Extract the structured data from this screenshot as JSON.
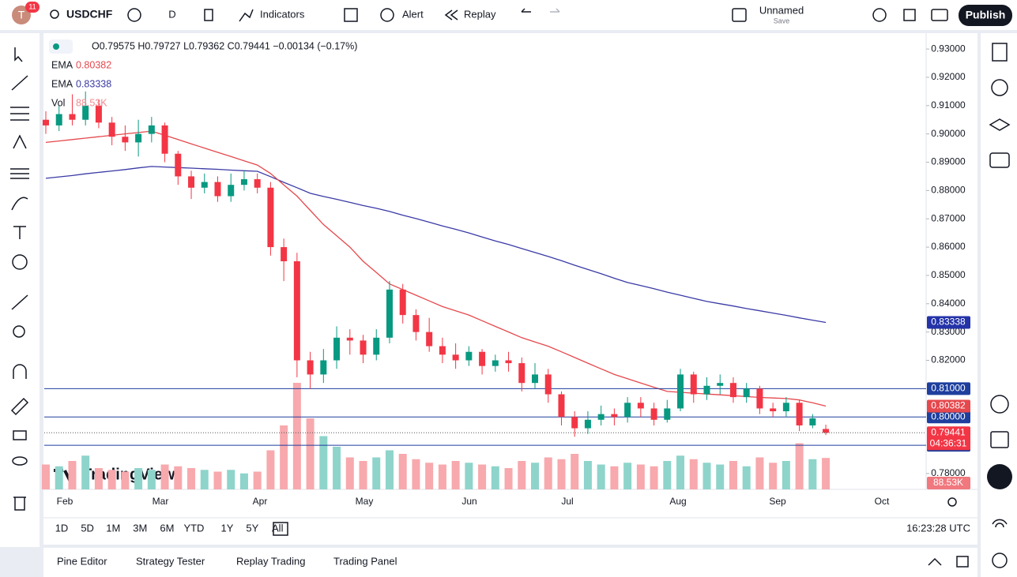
{
  "toolbar": {
    "avatar": "T",
    "notifications": "11",
    "symbol": "USDCHF",
    "interval": "D",
    "indicators": "Indicators",
    "alert": "Alert",
    "replay": "Replay",
    "layout_name": "Unnamed",
    "save": "Save",
    "publish": "Publish"
  },
  "chart_data": {
    "type": "candlestick",
    "ohlc_legend": "O0.79575 H0.79727 L0.79362 C0.79441 −0.00134 (−0.17%)",
    "indicators": [
      {
        "name": "EMA",
        "value_label": "0.80382",
        "color": "#e5484d"
      },
      {
        "name": "EMA",
        "value_label": "0.83338",
        "color": "#3a3aa6"
      },
      {
        "name": "Vol",
        "value_label": "88.53K",
        "color": "#f08a8f"
      }
    ],
    "months": [
      "Feb",
      "Mar",
      "Apr",
      "May",
      "Jun",
      "Jul",
      "Aug",
      "Sep",
      "Oct"
    ],
    "up_color": "#089981",
    "down_color": "#f23645",
    "volume_up_color": "#8ed4cb",
    "volume_down_color": "#f7a9ad",
    "open": [
      0.905,
      0.903,
      0.907,
      0.905,
      0.91,
      0.904,
      0.899,
      0.897,
      0.9,
      0.903,
      0.893,
      0.885,
      0.881,
      0.883,
      0.878,
      0.882,
      0.884,
      0.881,
      0.86,
      0.855,
      0.82,
      0.815,
      0.82,
      0.828,
      0.827,
      0.822,
      0.828,
      0.845,
      0.836,
      0.83,
      0.825,
      0.822,
      0.82,
      0.823,
      0.818,
      0.82,
      0.819,
      0.812,
      0.815,
      0.808,
      0.8,
      0.796,
      0.799,
      0.801,
      0.8,
      0.805,
      0.803,
      0.799,
      0.803,
      0.815,
      0.808,
      0.811,
      0.812,
      0.807,
      0.81,
      0.803,
      0.802,
      0.805,
      0.797,
      0.79575
    ],
    "high": [
      0.908,
      0.91,
      0.914,
      0.915,
      0.912,
      0.906,
      0.903,
      0.905,
      0.906,
      0.904,
      0.894,
      0.887,
      0.886,
      0.885,
      0.886,
      0.887,
      0.886,
      0.883,
      0.863,
      0.858,
      0.823,
      0.824,
      0.832,
      0.831,
      0.829,
      0.831,
      0.848,
      0.847,
      0.838,
      0.835,
      0.828,
      0.826,
      0.825,
      0.824,
      0.822,
      0.823,
      0.821,
      0.819,
      0.817,
      0.809,
      0.802,
      0.802,
      0.804,
      0.803,
      0.807,
      0.807,
      0.805,
      0.806,
      0.817,
      0.816,
      0.814,
      0.815,
      0.814,
      0.812,
      0.811,
      0.805,
      0.807,
      0.806,
      0.801,
      0.79727
    ],
    "low": [
      0.9,
      0.901,
      0.903,
      0.903,
      0.902,
      0.896,
      0.894,
      0.892,
      0.897,
      0.89,
      0.882,
      0.877,
      0.879,
      0.876,
      0.876,
      0.88,
      0.879,
      0.857,
      0.848,
      0.814,
      0.81,
      0.812,
      0.817,
      0.822,
      0.819,
      0.82,
      0.826,
      0.833,
      0.827,
      0.823,
      0.819,
      0.817,
      0.818,
      0.815,
      0.816,
      0.816,
      0.809,
      0.81,
      0.805,
      0.797,
      0.793,
      0.794,
      0.797,
      0.797,
      0.798,
      0.8,
      0.797,
      0.798,
      0.802,
      0.805,
      0.806,
      0.808,
      0.805,
      0.805,
      0.801,
      0.8,
      0.8,
      0.795,
      0.796,
      0.79362
    ],
    "close": [
      0.903,
      0.907,
      0.905,
      0.91,
      0.904,
      0.899,
      0.897,
      0.9,
      0.903,
      0.893,
      0.885,
      0.881,
      0.883,
      0.878,
      0.882,
      0.884,
      0.881,
      0.86,
      0.855,
      0.82,
      0.815,
      0.82,
      0.828,
      0.827,
      0.822,
      0.828,
      0.845,
      0.836,
      0.83,
      0.825,
      0.822,
      0.82,
      0.823,
      0.818,
      0.82,
      0.819,
      0.812,
      0.815,
      0.808,
      0.8,
      0.796,
      0.799,
      0.801,
      0.8,
      0.805,
      0.803,
      0.799,
      0.803,
      0.815,
      0.808,
      0.811,
      0.812,
      0.807,
      0.81,
      0.803,
      0.802,
      0.805,
      0.797,
      0.7995,
      0.79441
    ],
    "volume": [
      70,
      65,
      80,
      95,
      60,
      55,
      50,
      60,
      55,
      70,
      65,
      60,
      55,
      50,
      55,
      45,
      50,
      110,
      180,
      300,
      200,
      150,
      120,
      90,
      80,
      90,
      110,
      100,
      85,
      75,
      70,
      80,
      75,
      70,
      65,
      60,
      80,
      75,
      90,
      85,
      100,
      80,
      70,
      65,
      75,
      70,
      65,
      80,
      95,
      85,
      75,
      70,
      80,
      65,
      90,
      75,
      80,
      130,
      85,
      88.53
    ],
    "ema_fast": [
      0.897,
      0.8975,
      0.898,
      0.8985,
      0.899,
      0.8995,
      0.9,
      0.9005,
      0.901,
      0.8995,
      0.898,
      0.8965,
      0.895,
      0.8935,
      0.892,
      0.8905,
      0.889,
      0.886,
      0.882,
      0.878,
      0.873,
      0.868,
      0.864,
      0.86,
      0.855,
      0.851,
      0.847,
      0.845,
      0.843,
      0.841,
      0.839,
      0.8375,
      0.836,
      0.834,
      0.832,
      0.83,
      0.828,
      0.8265,
      0.825,
      0.823,
      0.821,
      0.819,
      0.817,
      0.815,
      0.8135,
      0.812,
      0.8105,
      0.809,
      0.8087,
      0.8084,
      0.8081,
      0.8078,
      0.8075,
      0.8072,
      0.8069,
      0.8067,
      0.8065,
      0.806,
      0.805,
      0.80382
    ],
    "ema_slow": [
      0.8843,
      0.8848,
      0.8853,
      0.8859,
      0.8864,
      0.8869,
      0.8874,
      0.888,
      0.8885,
      0.8883,
      0.8881,
      0.8879,
      0.8877,
      0.8875,
      0.8872,
      0.887,
      0.8868,
      0.8849,
      0.8829,
      0.881,
      0.879,
      0.8779,
      0.8769,
      0.8758,
      0.8747,
      0.8737,
      0.8726,
      0.8713,
      0.8701,
      0.8688,
      0.8675,
      0.8663,
      0.865,
      0.8636,
      0.8622,
      0.8609,
      0.8595,
      0.8581,
      0.8567,
      0.8552,
      0.8536,
      0.8521,
      0.8506,
      0.849,
      0.8475,
      0.8464,
      0.8453,
      0.8441,
      0.843,
      0.8419,
      0.8408,
      0.84,
      0.8392,
      0.8383,
      0.8375,
      0.8367,
      0.8359,
      0.835,
      0.8342,
      0.83338
    ],
    "ylim": [
      0.7744,
      0.9356
    ],
    "yticks": [
      {
        "value": 0.93,
        "label": "0.93000"
      },
      {
        "value": 0.92,
        "label": "0.92000"
      },
      {
        "value": 0.91,
        "label": "0.91000"
      },
      {
        "value": 0.9,
        "label": "0.90000"
      },
      {
        "value": 0.89,
        "label": "0.89000"
      },
      {
        "value": 0.88,
        "label": "0.88000"
      },
      {
        "value": 0.87,
        "label": "0.87000"
      },
      {
        "value": 0.86,
        "label": "0.86000"
      },
      {
        "value": 0.85,
        "label": "0.85000"
      },
      {
        "value": 0.84,
        "label": "0.84000"
      },
      {
        "value": 0.83,
        "label": "0.83000"
      },
      {
        "value": 0.82,
        "label": "0.82000"
      },
      {
        "value": 0.78,
        "label": "0.78000"
      }
    ],
    "levels": [
      {
        "value": 0.81,
        "label": "0.81000"
      },
      {
        "value": 0.8,
        "label": "0.80000"
      },
      {
        "value": 0.79,
        "label": "0.79000"
      }
    ],
    "level_color": "#1e3f9e",
    "price_badges": [
      {
        "value": 0.83338,
        "label": "0.83338",
        "color": "#2433a8"
      },
      {
        "value": 0.80382,
        "label": "0.80382",
        "color": "#e5484d"
      },
      {
        "value": 0.79441,
        "label": "0.79441",
        "sublabel": "04:36:31",
        "color": "#f23645"
      }
    ],
    "volume_badge": {
      "label": "88.53K",
      "color": "#f0787e"
    },
    "watermark": "TradingView"
  },
  "timeframes": [
    "1D",
    "5D",
    "1M",
    "3M",
    "6M",
    "YTD",
    "1Y",
    "5Y",
    "All"
  ],
  "clock": "16:23:28 UTC",
  "bottom_tabs": [
    "Pine Editor",
    "Strategy Tester",
    "Replay Trading",
    "Trading Panel"
  ]
}
